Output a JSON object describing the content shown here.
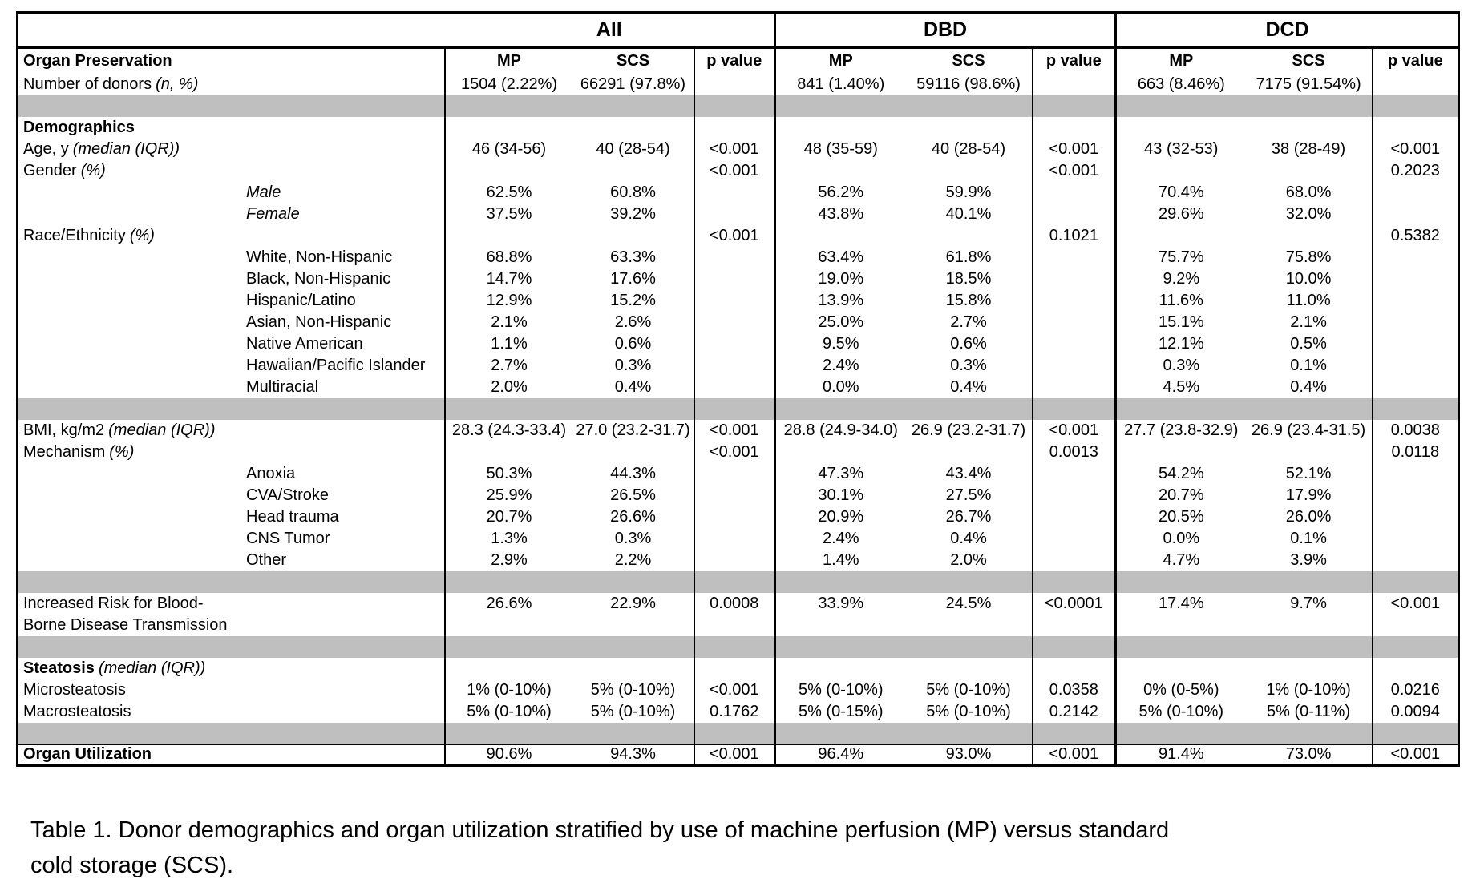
{
  "caption": "Table 1. Donor demographics and organ utilization stratified by use of machine perfusion (MP) versus standard cold storage (SCS).",
  "colors": {
    "separator_gray": "#bfbfbf",
    "border_black": "#000000",
    "background": "#ffffff"
  },
  "table": {
    "group_headers": [
      "All",
      "DBD",
      "DCD"
    ],
    "column_headers": [
      "Organ Preservation",
      "MP",
      "SCS",
      "p value",
      "MP",
      "SCS",
      "p value",
      "MP",
      "SCS",
      "p value"
    ],
    "rows": [
      {
        "kind": "data",
        "label": "Number of donors",
        "em": "(n, %)",
        "values": [
          "1504 (2.22%)",
          "66291 (97.8%)",
          "",
          "841 (1.40%)",
          "59116 (98.6%)",
          "",
          "663 (8.46%)",
          "7175 (91.54%)",
          ""
        ]
      },
      {
        "kind": "separator"
      },
      {
        "kind": "data",
        "label": "Demographics",
        "bold": true,
        "values": [
          "",
          "",
          "",
          "",
          "",
          "",
          "",
          "",
          ""
        ]
      },
      {
        "kind": "data",
        "label": "Age, y",
        "em": "(median (IQR))",
        "values": [
          "46 (34-56)",
          "40 (28-54)",
          "<0.001",
          "48 (35-59)",
          "40 (28-54)",
          "<0.001",
          "43 (32-53)",
          "38 (28-49)",
          "<0.001"
        ]
      },
      {
        "kind": "data",
        "label": "Gender",
        "em": "(%)",
        "values": [
          "",
          "",
          "<0.001",
          "",
          "",
          "<0.001",
          "",
          "",
          "0.2023"
        ]
      },
      {
        "kind": "data",
        "label": "Male",
        "italic": true,
        "indent": true,
        "values": [
          "62.5%",
          "60.8%",
          "",
          "56.2%",
          "59.9%",
          "",
          "70.4%",
          "68.0%",
          ""
        ]
      },
      {
        "kind": "data",
        "label": "Female",
        "italic": true,
        "indent": true,
        "values": [
          "37.5%",
          "39.2%",
          "",
          "43.8%",
          "40.1%",
          "",
          "29.6%",
          "32.0%",
          ""
        ]
      },
      {
        "kind": "data",
        "label": "Race/Ethnicity",
        "em": "(%)",
        "values": [
          "",
          "",
          "<0.001",
          "",
          "",
          "0.1021",
          "",
          "",
          "0.5382"
        ]
      },
      {
        "kind": "data",
        "label": "White, Non-Hispanic",
        "indent": true,
        "values": [
          "68.8%",
          "63.3%",
          "",
          "63.4%",
          "61.8%",
          "",
          "75.7%",
          "75.8%",
          ""
        ]
      },
      {
        "kind": "data",
        "label": "Black, Non-Hispanic",
        "indent": true,
        "values": [
          "14.7%",
          "17.6%",
          "",
          "19.0%",
          "18.5%",
          "",
          "9.2%",
          "10.0%",
          ""
        ]
      },
      {
        "kind": "data",
        "label": "Hispanic/Latino",
        "indent": true,
        "values": [
          "12.9%",
          "15.2%",
          "",
          "13.9%",
          "15.8%",
          "",
          "11.6%",
          "11.0%",
          ""
        ]
      },
      {
        "kind": "data",
        "label": "Asian, Non-Hispanic",
        "indent": true,
        "values": [
          "2.1%",
          "2.6%",
          "",
          "25.0%",
          "2.7%",
          "",
          "15.1%",
          "2.1%",
          ""
        ]
      },
      {
        "kind": "data",
        "label": "Native American",
        "indent": true,
        "values": [
          "1.1%",
          "0.6%",
          "",
          "9.5%",
          "0.6%",
          "",
          "12.1%",
          "0.5%",
          ""
        ]
      },
      {
        "kind": "data",
        "label": "Hawaiian/Pacific Islander",
        "indent": true,
        "values": [
          "2.7%",
          "0.3%",
          "",
          "2.4%",
          "0.3%",
          "",
          "0.3%",
          "0.1%",
          ""
        ]
      },
      {
        "kind": "data",
        "label": "Multiracial",
        "indent": true,
        "values": [
          "2.0%",
          "0.4%",
          "",
          "0.0%",
          "0.4%",
          "",
          "4.5%",
          "0.4%",
          ""
        ]
      },
      {
        "kind": "separator"
      },
      {
        "kind": "data",
        "label": "BMI, kg/m2",
        "em": "(median (IQR))",
        "values": [
          "28.3 (24.3-33.4)",
          "27.0 (23.2-31.7)",
          "<0.001",
          "28.8 (24.9-34.0)",
          "26.9 (23.2-31.7)",
          "<0.001",
          "27.7 (23.8-32.9)",
          "26.9 (23.4-31.5)",
          "0.0038"
        ]
      },
      {
        "kind": "data",
        "label": "Mechanism",
        "em": "(%)",
        "values": [
          "",
          "",
          "<0.001",
          "",
          "",
          "0.0013",
          "",
          "",
          "0.0118"
        ]
      },
      {
        "kind": "data",
        "label": "Anoxia",
        "indent": true,
        "values": [
          "50.3%",
          "44.3%",
          "",
          "47.3%",
          "43.4%",
          "",
          "54.2%",
          "52.1%",
          ""
        ]
      },
      {
        "kind": "data",
        "label": "CVA/Stroke",
        "indent": true,
        "values": [
          "25.9%",
          "26.5%",
          "",
          "30.1%",
          "27.5%",
          "",
          "20.7%",
          "17.9%",
          ""
        ]
      },
      {
        "kind": "data",
        "label": "Head trauma",
        "indent": true,
        "values": [
          "20.7%",
          "26.6%",
          "",
          "20.9%",
          "26.7%",
          "",
          "20.5%",
          "26.0%",
          ""
        ]
      },
      {
        "kind": "data",
        "label": "CNS Tumor",
        "indent": true,
        "values": [
          "1.3%",
          "0.3%",
          "",
          "2.4%",
          "0.4%",
          "",
          "0.0%",
          "0.1%",
          ""
        ]
      },
      {
        "kind": "data",
        "label": "Other",
        "indent": true,
        "values": [
          "2.9%",
          "2.2%",
          "",
          "1.4%",
          "2.0%",
          "",
          "4.7%",
          "3.9%",
          ""
        ]
      },
      {
        "kind": "separator"
      },
      {
        "kind": "data",
        "label": "Increased Risk for Blood-",
        "values": [
          "26.6%",
          "22.9%",
          "0.0008",
          "33.9%",
          "24.5%",
          "<0.0001",
          "17.4%",
          "9.7%",
          "<0.001"
        ]
      },
      {
        "kind": "data",
        "label": "Borne Disease Transmission",
        "values": [
          "",
          "",
          "",
          "",
          "",
          "",
          "",
          "",
          ""
        ]
      },
      {
        "kind": "separator"
      },
      {
        "kind": "data",
        "label": "Steatosis",
        "bold": true,
        "em": "(median (IQR))",
        "values": [
          "",
          "",
          "",
          "",
          "",
          "",
          "",
          "",
          ""
        ]
      },
      {
        "kind": "data",
        "label": "Microsteatosis",
        "values": [
          "1% (0-10%)",
          "5% (0-10%)",
          "<0.001",
          "5% (0-10%)",
          "5% (0-10%)",
          "0.0358",
          "0% (0-5%)",
          "1% (0-10%)",
          "0.0216"
        ]
      },
      {
        "kind": "data",
        "label": "Macrosteatosis",
        "values": [
          "5% (0-10%)",
          "5% (0-10%)",
          "0.1762",
          "5% (0-15%)",
          "5% (0-10%)",
          "0.2142",
          "5% (0-10%)",
          "5% (0-11%)",
          "0.0094"
        ]
      },
      {
        "kind": "separator"
      },
      {
        "kind": "data",
        "label": "Organ Utilization",
        "bold": true,
        "topline": true,
        "values": [
          "90.6%",
          "94.3%",
          "<0.001",
          "96.4%",
          "93.0%",
          "<0.001",
          "91.4%",
          "73.0%",
          "<0.001"
        ]
      }
    ]
  }
}
